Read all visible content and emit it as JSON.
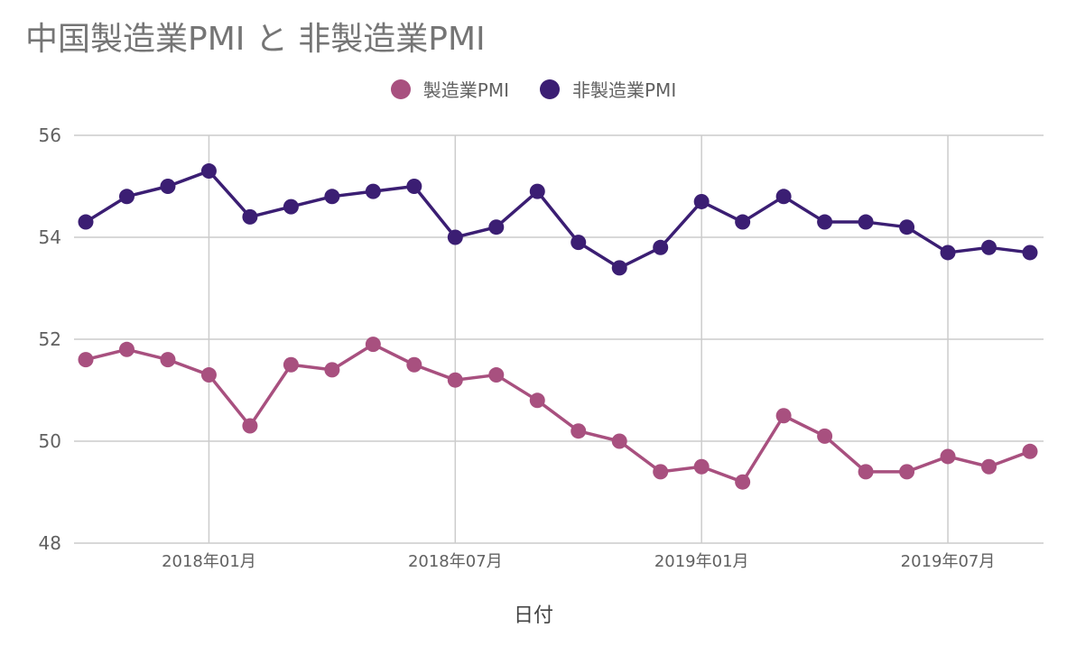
{
  "chart_data": {
    "type": "line",
    "title": "中国製造業PMI と 非製造業PMI",
    "xlabel": "日付",
    "ylabel": "",
    "ylim": [
      48,
      56
    ],
    "yticks": [
      "56",
      "54",
      "52",
      "50",
      "48"
    ],
    "x_tick_labels": [
      "2018年01月",
      "2018年07月",
      "2019年01月",
      "2019年07月"
    ],
    "x": [
      "2017-10",
      "2017-11",
      "2017-12",
      "2018-01",
      "2018-02",
      "2018-03",
      "2018-04",
      "2018-05",
      "2018-06",
      "2018-07",
      "2018-08",
      "2018-09",
      "2018-10",
      "2018-11",
      "2018-12",
      "2019-01",
      "2019-02",
      "2019-03",
      "2019-04",
      "2019-05",
      "2019-06",
      "2019-07",
      "2019-08",
      "2019-09"
    ],
    "grid": true,
    "legend_position": "top-center",
    "series": [
      {
        "name": "製造業PMI",
        "color": "#a8507f",
        "values": [
          51.6,
          51.8,
          51.6,
          51.3,
          50.3,
          51.5,
          51.4,
          51.9,
          51.5,
          51.2,
          51.3,
          50.8,
          50.2,
          50.0,
          49.4,
          49.5,
          49.2,
          50.5,
          50.1,
          49.4,
          49.4,
          49.7,
          49.5,
          49.8
        ]
      },
      {
        "name": "非製造業PMI",
        "color": "#3b1e73",
        "values": [
          54.3,
          54.8,
          55.0,
          55.3,
          54.4,
          54.6,
          54.8,
          54.9,
          55.0,
          54.0,
          54.2,
          54.9,
          53.9,
          53.4,
          53.8,
          54.7,
          54.3,
          54.8,
          54.3,
          54.3,
          54.2,
          53.7,
          53.8,
          53.7
        ]
      }
    ]
  }
}
